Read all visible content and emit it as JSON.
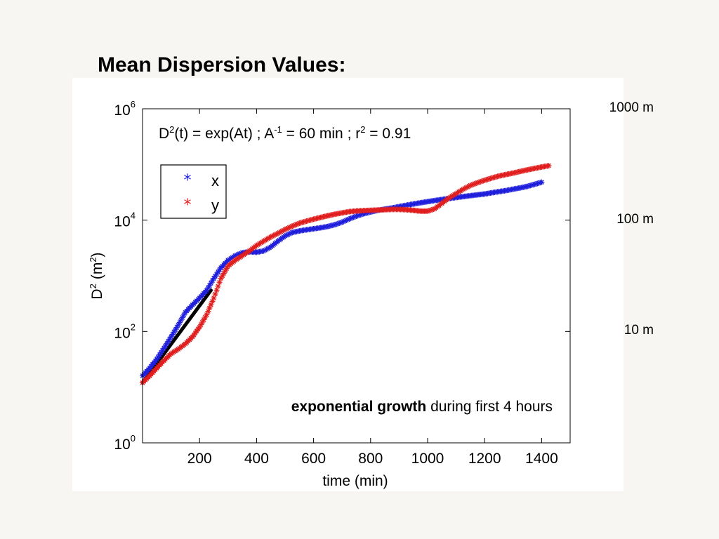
{
  "slide": {
    "title": "Mean Dispersion Values:"
  },
  "chart_data": {
    "type": "scatter",
    "yscale": "log",
    "xlabel": "time (min)",
    "ylabel_base": "D",
    "ylabel_sup": "2",
    "ylabel_unit": "(m",
    "ylabel_unit_sup": "2",
    "ylabel_close": ")",
    "xlim": [
      0,
      1500
    ],
    "ylim": [
      1,
      1000000
    ],
    "xticks": [
      {
        "value": 200,
        "label": "200"
      },
      {
        "value": 400,
        "label": "400"
      },
      {
        "value": 600,
        "label": "600"
      },
      {
        "value": 800,
        "label": "800"
      },
      {
        "value": 1000,
        "label": "1000"
      },
      {
        "value": 1200,
        "label": "1200"
      },
      {
        "value": 1400,
        "label": "1400"
      }
    ],
    "yticks": [
      {
        "value": 1,
        "base": "10",
        "exp": "0"
      },
      {
        "value": 100,
        "base": "10",
        "exp": "2"
      },
      {
        "value": 10000,
        "base": "10",
        "exp": "4"
      },
      {
        "value": 1000000,
        "base": "10",
        "exp": "6"
      }
    ],
    "right_axis_labels": [
      {
        "value": 1000000,
        "label": "1000 m"
      },
      {
        "value": 10000,
        "label": "100 m"
      },
      {
        "value": 100,
        "label": "10 m"
      }
    ],
    "legend": {
      "placement": "upper-left",
      "entries": [
        {
          "label": "x",
          "color": "#1f1fdc"
        },
        {
          "label": "y",
          "color": "#e11f1f"
        }
      ]
    },
    "equation": {
      "p1": "D",
      "p1_sup": "2",
      "p2": "(t) = exp(At) ;  A",
      "p2_sup": "-1",
      "p3": " = 60 min  ;  r",
      "p3_sup": "2",
      "p4": " = 0.91"
    },
    "annotation": {
      "bold": "exponential growth",
      "rest": " during first 4 hours"
    },
    "fit_line": {
      "color": "#000000",
      "points": [
        [
          0,
          12
        ],
        [
          240,
          550
        ]
      ]
    },
    "series": [
      {
        "name": "x",
        "color": "#1f1fdc",
        "points": [
          [
            0,
            16
          ],
          [
            25,
            22
          ],
          [
            50,
            32
          ],
          [
            75,
            50
          ],
          [
            100,
            80
          ],
          [
            125,
            130
          ],
          [
            150,
            220
          ],
          [
            175,
            300
          ],
          [
            200,
            400
          ],
          [
            225,
            550
          ],
          [
            250,
            900
          ],
          [
            275,
            1400
          ],
          [
            300,
            1900
          ],
          [
            325,
            2300
          ],
          [
            350,
            2600
          ],
          [
            375,
            2700
          ],
          [
            400,
            2650
          ],
          [
            425,
            2800
          ],
          [
            450,
            3300
          ],
          [
            475,
            4200
          ],
          [
            500,
            5200
          ],
          [
            525,
            6000
          ],
          [
            550,
            6400
          ],
          [
            575,
            6700
          ],
          [
            600,
            7000
          ],
          [
            625,
            7300
          ],
          [
            650,
            7700
          ],
          [
            675,
            8300
          ],
          [
            700,
            9200
          ],
          [
            725,
            10500
          ],
          [
            750,
            11800
          ],
          [
            775,
            13000
          ],
          [
            800,
            14000
          ],
          [
            825,
            15000
          ],
          [
            850,
            15800
          ],
          [
            875,
            16500
          ],
          [
            900,
            17500
          ],
          [
            925,
            18500
          ],
          [
            950,
            19500
          ],
          [
            975,
            20500
          ],
          [
            1000,
            21500
          ],
          [
            1025,
            22500
          ],
          [
            1050,
            23500
          ],
          [
            1075,
            24500
          ],
          [
            1100,
            25500
          ],
          [
            1125,
            26500
          ],
          [
            1150,
            27500
          ],
          [
            1175,
            28500
          ],
          [
            1200,
            29500
          ],
          [
            1225,
            31000
          ],
          [
            1250,
            32500
          ],
          [
            1275,
            34000
          ],
          [
            1300,
            36000
          ],
          [
            1325,
            38000
          ],
          [
            1350,
            40500
          ],
          [
            1375,
            44000
          ],
          [
            1400,
            48000
          ]
        ]
      },
      {
        "name": "y",
        "color": "#e11f1f",
        "points": [
          [
            0,
            12
          ],
          [
            25,
            16
          ],
          [
            50,
            22
          ],
          [
            75,
            30
          ],
          [
            100,
            40
          ],
          [
            125,
            48
          ],
          [
            150,
            60
          ],
          [
            175,
            80
          ],
          [
            200,
            120
          ],
          [
            225,
            200
          ],
          [
            250,
            400
          ],
          [
            275,
            900
          ],
          [
            300,
            1500
          ],
          [
            325,
            1900
          ],
          [
            350,
            2300
          ],
          [
            375,
            2800
          ],
          [
            400,
            3500
          ],
          [
            425,
            4200
          ],
          [
            450,
            5000
          ],
          [
            475,
            5800
          ],
          [
            500,
            6800
          ],
          [
            525,
            7800
          ],
          [
            550,
            8800
          ],
          [
            575,
            9600
          ],
          [
            600,
            10400
          ],
          [
            625,
            11200
          ],
          [
            650,
            12000
          ],
          [
            675,
            12800
          ],
          [
            700,
            13500
          ],
          [
            725,
            14200
          ],
          [
            750,
            14600
          ],
          [
            775,
            14800
          ],
          [
            800,
            15000
          ],
          [
            825,
            15200
          ],
          [
            850,
            15400
          ],
          [
            875,
            15600
          ],
          [
            900,
            15600
          ],
          [
            925,
            15400
          ],
          [
            950,
            15000
          ],
          [
            975,
            14500
          ],
          [
            1000,
            14500
          ],
          [
            1025,
            16000
          ],
          [
            1050,
            20000
          ],
          [
            1075,
            25000
          ],
          [
            1100,
            30000
          ],
          [
            1125,
            36000
          ],
          [
            1150,
            42000
          ],
          [
            1175,
            47000
          ],
          [
            1200,
            52000
          ],
          [
            1225,
            57000
          ],
          [
            1250,
            62000
          ],
          [
            1275,
            66000
          ],
          [
            1300,
            70000
          ],
          [
            1325,
            75000
          ],
          [
            1350,
            80000
          ],
          [
            1375,
            85000
          ],
          [
            1400,
            90000
          ],
          [
            1425,
            95000
          ]
        ]
      }
    ]
  }
}
